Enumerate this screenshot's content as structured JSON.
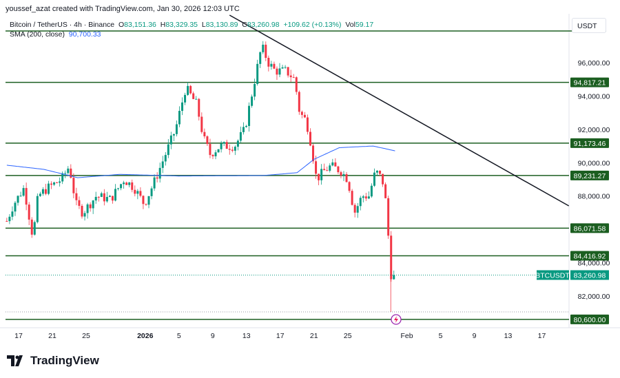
{
  "credit": "youssef_azat created with TradingView.com, Jan 30, 2026 12:03 UTC",
  "legend": {
    "symbol": "Bitcoin / TetherUS · 4h · Binance",
    "o_label": "O",
    "o": "83,151.36",
    "h_label": "H",
    "h": "83,329.35",
    "l_label": "L",
    "l": "83,130.89",
    "c_label": "C",
    "c": "83,260.98",
    "change": "+109.62 (+0.13%)",
    "vol_label": "Vol",
    "vol": "59.17"
  },
  "sma": {
    "label": "SMA (200, close)",
    "value": "90,700.33"
  },
  "currency": "USDT",
  "logo": "TradingView",
  "colors": {
    "up": "#089981",
    "down": "#f23645",
    "level": "#1b5e20",
    "sma": "#2962ff",
    "trend": "#131722"
  },
  "chart_data": {
    "type": "candlestick",
    "title": "Bitcoin / TetherUS 4h",
    "x_unit": "days since Dec 17, 2025",
    "y_ticks": [
      "96,000.00",
      "94,000.00",
      "92,000.00",
      "90,000.00",
      "88,000.00",
      "84,000.00",
      "82,000.00"
    ],
    "y_tick_values": [
      96000,
      94000,
      92000,
      90000,
      88000,
      84000,
      82000
    ],
    "x_ticks": [
      "17",
      "21",
      "25",
      "2026",
      "5",
      "9",
      "13",
      "17",
      "21",
      "25",
      "Feb",
      "5",
      "9",
      "13",
      "17"
    ],
    "x_tick_days": [
      0,
      4,
      8,
      15,
      19,
      23,
      27,
      31,
      35,
      39,
      46,
      50,
      54,
      58,
      62
    ],
    "price_path": [
      [
        -1.4,
        86500
      ],
      [
        -0.6,
        87500
      ],
      [
        0.65,
        88500
      ],
      [
        1.7,
        85500
      ],
      [
        2.3,
        88000
      ],
      [
        3.5,
        88500
      ],
      [
        5.1,
        89000
      ],
      [
        6.0,
        89800
      ],
      [
        6.8,
        87500
      ],
      [
        7.6,
        87000
      ],
      [
        9.2,
        88000
      ],
      [
        10.9,
        87800
      ],
      [
        12.5,
        89000
      ],
      [
        13.7,
        88500
      ],
      [
        14.9,
        87500
      ],
      [
        16.2,
        89000
      ],
      [
        17.4,
        90500
      ],
      [
        18.6,
        92000
      ],
      [
        19.8,
        94500
      ],
      [
        21.1,
        93500
      ],
      [
        21.9,
        91500
      ],
      [
        22.7,
        90500
      ],
      [
        23.9,
        91000
      ],
      [
        25.6,
        91000
      ],
      [
        26.8,
        92000
      ],
      [
        27.6,
        94000
      ],
      [
        28.4,
        96000
      ],
      [
        28.8,
        97000
      ],
      [
        29.6,
        96000
      ],
      [
        30.4,
        95500
      ],
      [
        31.7,
        95500
      ],
      [
        32.7,
        95000
      ],
      [
        33.3,
        93000
      ],
      [
        34.1,
        92500
      ],
      [
        34.7,
        91000
      ],
      [
        35.3,
        89000
      ],
      [
        36.2,
        89500
      ],
      [
        37.0,
        89800
      ],
      [
        38.2,
        89500
      ],
      [
        39.0,
        89000
      ],
      [
        39.8,
        87000
      ],
      [
        40.7,
        88000
      ],
      [
        41.5,
        88000
      ],
      [
        42.3,
        89500
      ],
      [
        43.1,
        89000
      ],
      [
        43.7,
        87000
      ],
      [
        43.9,
        84500
      ],
      [
        44.3,
        82500
      ],
      [
        44.7,
        83260.98
      ]
    ],
    "sma_path": [
      [
        -1.4,
        89850
      ],
      [
        3,
        89600
      ],
      [
        7,
        89100
      ],
      [
        12,
        89300
      ],
      [
        19,
        89200
      ],
      [
        29,
        89230
      ],
      [
        33,
        89400
      ],
      [
        35,
        90200
      ],
      [
        38,
        90900
      ],
      [
        42,
        91000
      ],
      [
        44.7,
        90700
      ]
    ],
    "trendline": [
      [
        25.0,
        98850
      ],
      [
        65.2,
        87410
      ]
    ],
    "levels": [
      {
        "price": 94817.21,
        "label": "94,817.21"
      },
      {
        "price": 91173.46,
        "label": "91,173.46"
      },
      {
        "price": 89231.27,
        "label": "89,231.27"
      },
      {
        "price": 86071.58,
        "label": "86,071.58"
      },
      {
        "price": 84416.92,
        "label": "84,416.92"
      },
      {
        "price": 80600,
        "label": "80,600.00"
      }
    ],
    "last_price": {
      "symbol": "BTCUSDT",
      "price": 83260.98,
      "label": "83,260.98"
    },
    "ylim": [
      79800,
      98200
    ]
  }
}
